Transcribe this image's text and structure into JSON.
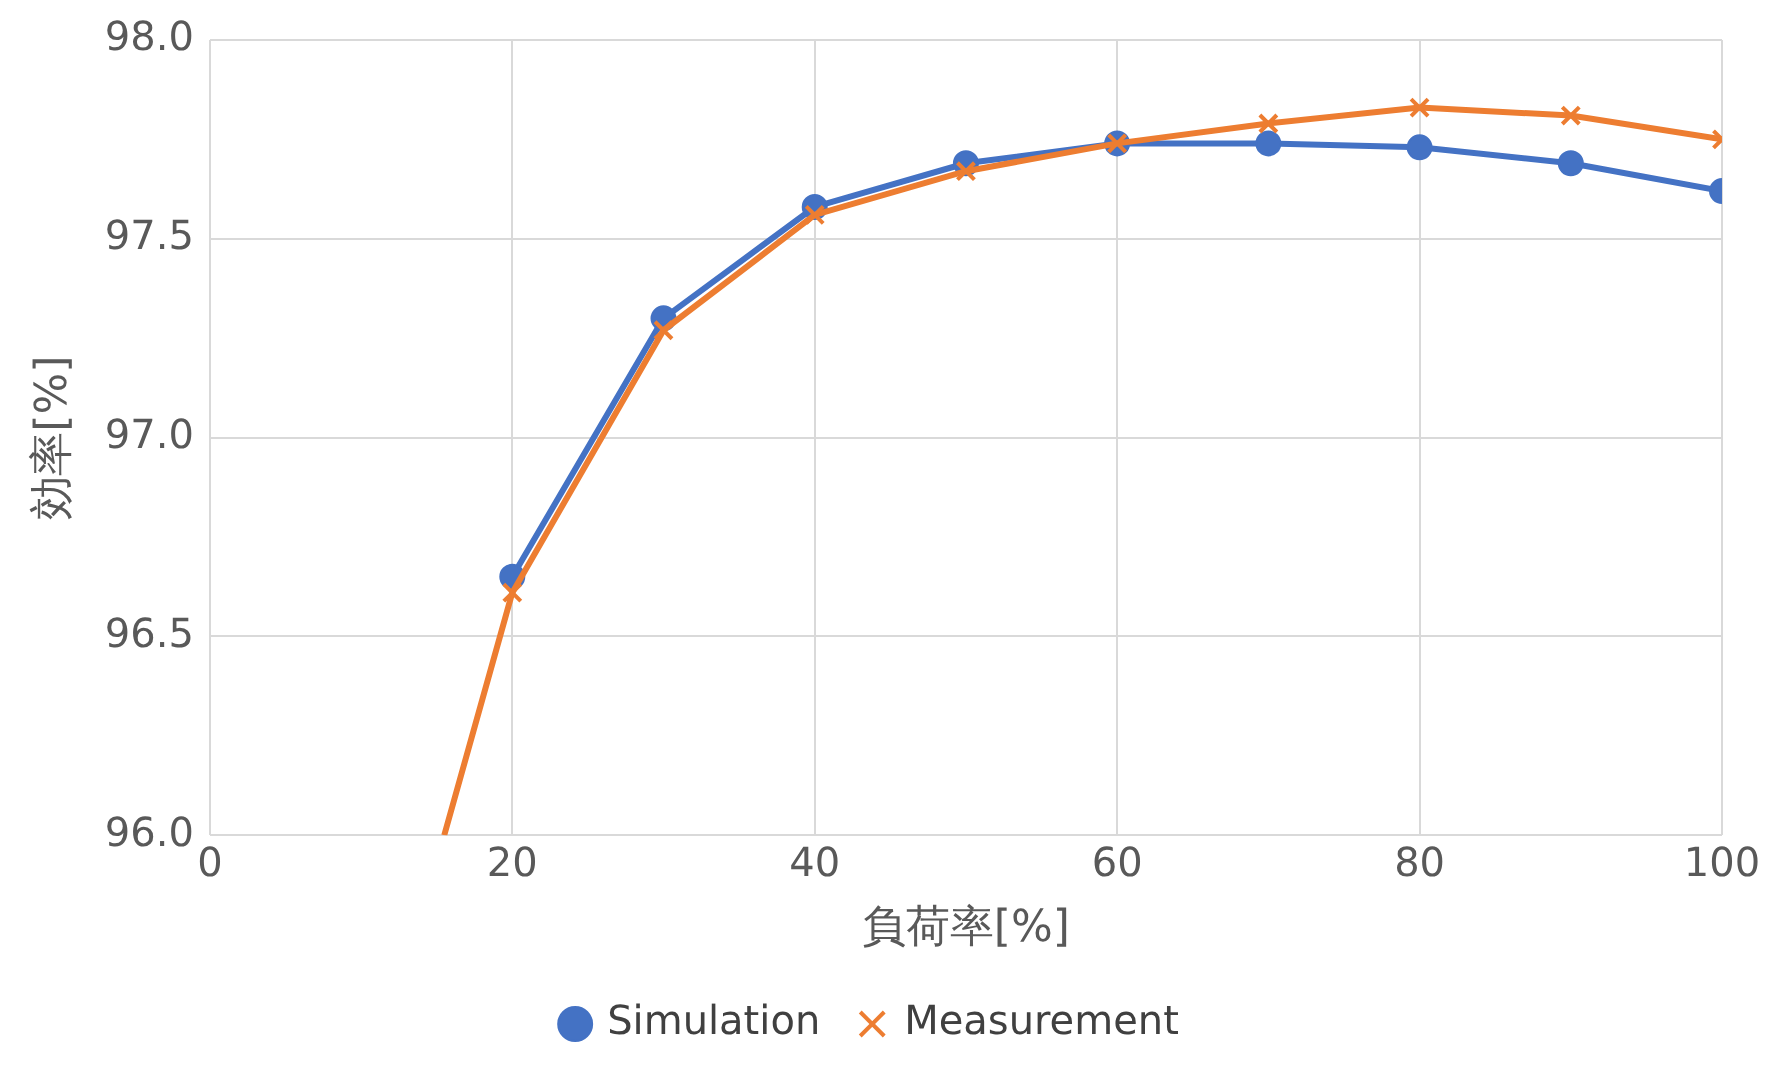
{
  "chart_data": {
    "type": "line",
    "xlabel": "負荷率[%]",
    "ylabel": "効率[%]",
    "xlim": [
      0,
      100
    ],
    "xticks": [
      0,
      20,
      40,
      60,
      80,
      100
    ],
    "ylim": [
      96.0,
      98.0
    ],
    "yticks": [
      {
        "value": 96,
        "label": "96.0"
      },
      {
        "value": 96.5,
        "label": "96.5"
      },
      {
        "value": 97,
        "label": "97.0"
      },
      {
        "value": 97.5,
        "label": "97.5"
      },
      {
        "value": 98,
        "label": "98.0"
      }
    ],
    "grid": true,
    "legend": "bottom",
    "line_style": "solid",
    "series": [
      {
        "name": "Simulation",
        "color": "#4472c4",
        "marker": "circle",
        "x": [
          20,
          30,
          40,
          50,
          60,
          70,
          80,
          90,
          100
        ],
        "values": [
          96.65,
          97.3,
          97.58,
          97.69,
          97.74,
          97.74,
          97.73,
          97.69,
          97.62
        ]
      },
      {
        "name": "Measurement",
        "color": "#ed7d31",
        "marker": "cross",
        "x": [
          15.5,
          20,
          30,
          40,
          50,
          60,
          70,
          80,
          90,
          100
        ],
        "values": [
          96.0,
          96.61,
          97.27,
          97.56,
          97.67,
          97.74,
          97.79,
          97.83,
          97.81,
          97.75
        ]
      }
    ]
  }
}
